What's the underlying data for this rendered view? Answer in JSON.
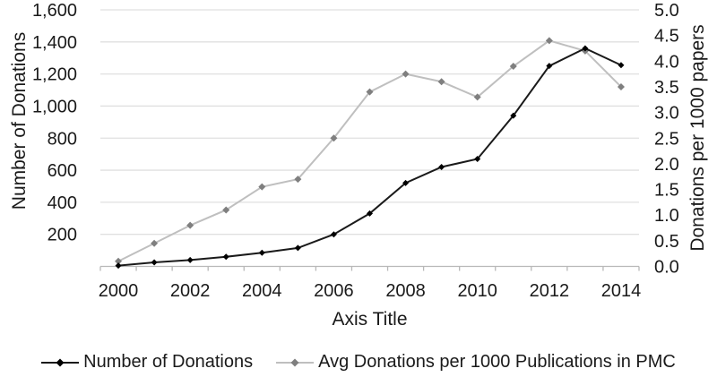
{
  "chart_data": {
    "type": "line",
    "title": "",
    "xlabel": "Axis Title",
    "x": [
      2000,
      2001,
      2002,
      2003,
      2004,
      2005,
      2006,
      2007,
      2008,
      2009,
      2010,
      2011,
      2012,
      2013,
      2014
    ],
    "x_tick_labels": [
      "2000",
      "2002",
      "2004",
      "2006",
      "2008",
      "2010",
      "2012",
      "2014"
    ],
    "left_axis": {
      "title": "Number of Donations",
      "min": 0,
      "max": 1600,
      "tick_step": 200,
      "tick_values": [
        200,
        400,
        600,
        800,
        1000,
        1200,
        1400,
        1600
      ],
      "tick_labels": [
        "200",
        "400",
        "600",
        "800",
        "1,000",
        "1,200",
        "1,400",
        "1,600"
      ]
    },
    "right_axis": {
      "title": "Donations per 1000 papers",
      "min": 0,
      "max": 5,
      "tick_step": 0.5,
      "tick_values": [
        0,
        0.5,
        1,
        1.5,
        2,
        2.5,
        3,
        3.5,
        4,
        4.5,
        5
      ],
      "tick_labels": [
        "0.0",
        "0.5",
        "1.0",
        "1.5",
        "2.0",
        "2.5",
        "3.0",
        "3.5",
        "4.0",
        "4.5",
        "5.0"
      ]
    },
    "series": [
      {
        "name": "Number of Donations",
        "axis": "left",
        "line_color": "#1a1a1a",
        "marker_color": "#000000",
        "marker": "diamond",
        "values": [
          5,
          25,
          40,
          60,
          85,
          115,
          200,
          330,
          520,
          620,
          670,
          940,
          1250,
          1360,
          1255
        ]
      },
      {
        "name": "Avg Donations per 1000 Publications in PMC",
        "axis": "right",
        "line_color": "#bfbfbf",
        "marker_color": "#7f7f7f",
        "marker": "diamond",
        "values": [
          0.1,
          0.45,
          0.8,
          1.1,
          1.55,
          1.7,
          2.5,
          3.4,
          3.75,
          3.6,
          3.3,
          3.9,
          4.4,
          4.2,
          3.5
        ]
      }
    ],
    "grid": true,
    "legend_position": "bottom",
    "colors": {
      "gridline": "#e0e0e0",
      "axis_line": "#b8b8b8",
      "text": "#1a1a1a",
      "background": "#ffffff"
    }
  }
}
